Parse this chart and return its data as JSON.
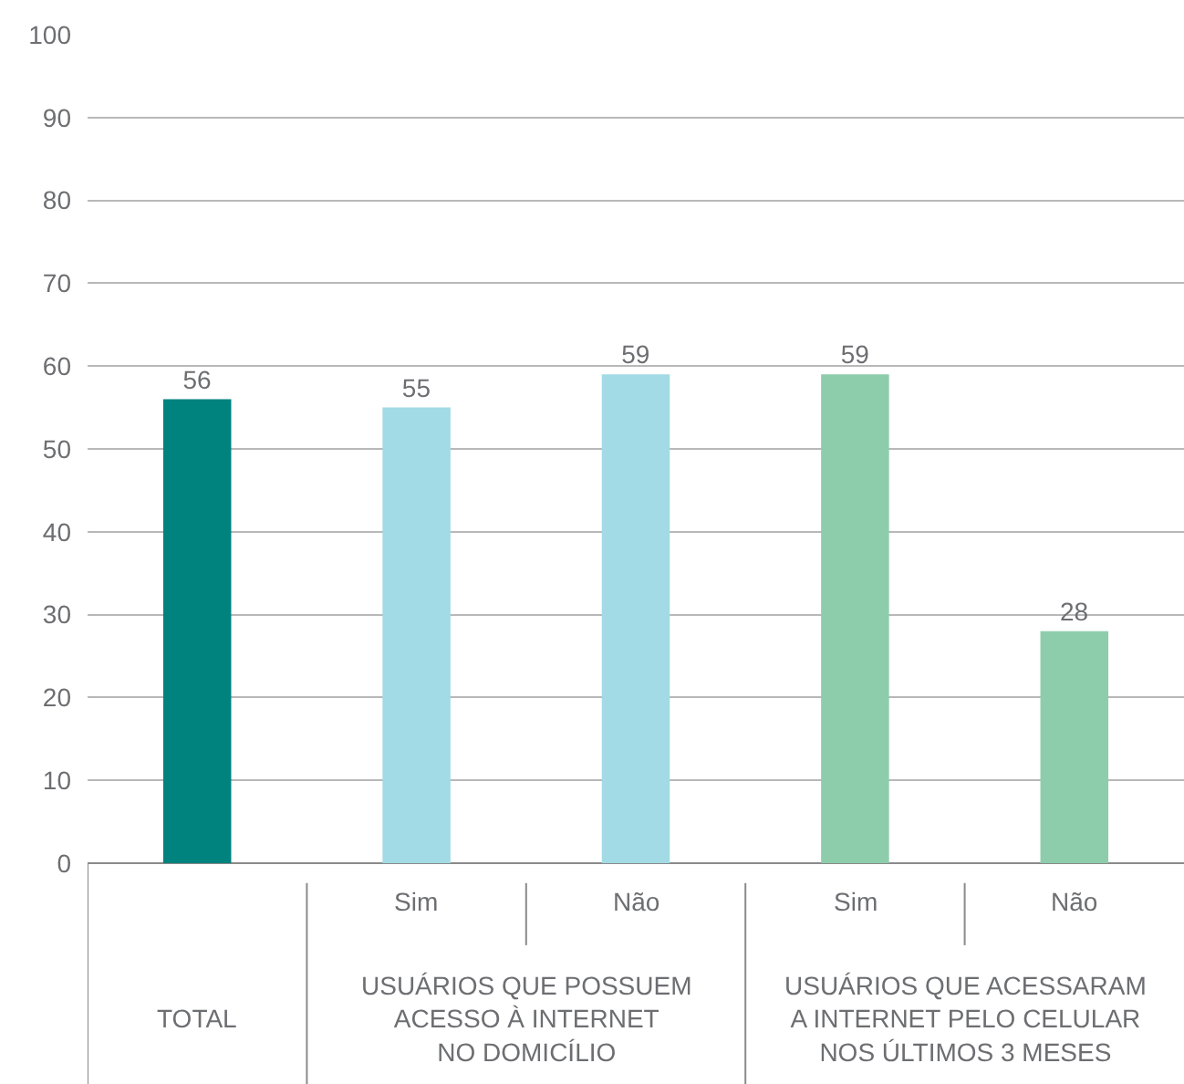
{
  "chart_data": {
    "type": "bar",
    "categories": [
      null,
      "Sim",
      "Não",
      "Sim",
      "Não"
    ],
    "values": [
      56,
      55,
      59,
      59,
      28
    ],
    "colors": [
      "#00827f",
      "#a2dbe5",
      "#a2dbe5",
      "#8ecdab",
      "#8ecdab"
    ],
    "ylim": [
      0,
      100
    ],
    "yticks": [
      0,
      10,
      20,
      30,
      40,
      50,
      60,
      70,
      80,
      90,
      100
    ],
    "grid": "y",
    "data_labels": true,
    "annotations": [
      "TOTAL",
      "USUÁRIOS QUE POSSUEM\nACESSO À INTERNET\nNO DOMICÍLIO",
      "USUÁRIOS QUE ACESSARAM\nA INTERNET PELO CELULAR\nNOS ÚLTIMOS 3 MESES"
    ]
  }
}
